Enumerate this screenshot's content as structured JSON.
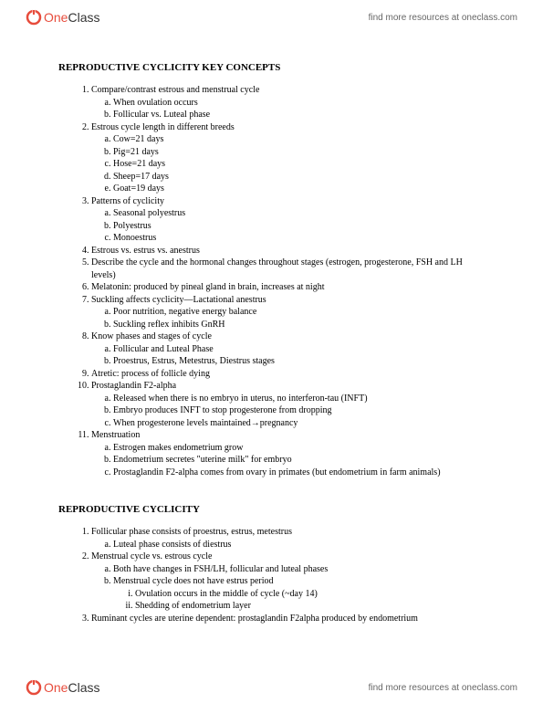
{
  "brand": {
    "one": "One",
    "class": "Class"
  },
  "header_link": "find more resources at oneclass.com",
  "footer_link": "find more resources at oneclass.com",
  "section1": {
    "title": "REPRODUCTIVE CYCLICITY KEY CONCEPTS",
    "items": [
      {
        "t": "Compare/contrast estrous and menstrual cycle",
        "sub": [
          {
            "t": "When ovulation occurs"
          },
          {
            "t": "Follicular vs. Luteal phase"
          }
        ]
      },
      {
        "t": "Estrous cycle length in different breeds",
        "sub": [
          {
            "t": "Cow=21 days"
          },
          {
            "t": "Pig=21 days"
          },
          {
            "t": "Hose=21 days"
          },
          {
            "t": "Sheep=17 days"
          },
          {
            "t": "Goat=19 days"
          }
        ]
      },
      {
        "t": "Patterns of cyclicity",
        "sub": [
          {
            "t": "Seasonal polyestrus"
          },
          {
            "t": "Polyestrus"
          },
          {
            "t": "Monoestrus"
          }
        ]
      },
      {
        "t": "Estrous vs. estrus vs. anestrus"
      },
      {
        "t": "Describe the cycle and the hormonal changes throughout stages (estrogen, progesterone, FSH and LH levels)"
      },
      {
        "t": "Melatonin: produced by pineal gland in brain, increases at night"
      },
      {
        "t": "Suckling affects cyclicity—Lactational anestrus",
        "sub": [
          {
            "t": "Poor nutrition, negative energy balance"
          },
          {
            "t": "Suckling reflex inhibits GnRH"
          }
        ]
      },
      {
        "t": "Know phases and stages of cycle",
        "sub": [
          {
            "t": "Follicular and Luteal Phase"
          },
          {
            "t": "Proestrus, Estrus, Metestrus, Diestrus stages"
          }
        ]
      },
      {
        "t": "Atretic: process of follicle dying"
      },
      {
        "t": "Prostaglandin F2-alpha",
        "sub": [
          {
            "t": "Released when there is no embryo in uterus, no interferon-tau (INFT)"
          },
          {
            "t": "Embryo produces INFT to stop progesterone from dropping"
          },
          {
            "t": "When progesterone levels maintained→pregnancy"
          }
        ]
      },
      {
        "t": "Menstruation",
        "sub": [
          {
            "t": "Estrogen makes endometrium grow"
          },
          {
            "t": "Endometrium secretes \"uterine milk\" for embryo"
          },
          {
            "t": "Prostaglandin F2-alpha comes from ovary in primates (but endometrium in farm animals)"
          }
        ]
      }
    ]
  },
  "section2": {
    "title": "REPRODUCTIVE CYCLICITY",
    "items": [
      {
        "t": "Follicular phase consists of proestrus, estrus, metestrus",
        "sub": [
          {
            "t": "Luteal phase consists of diestrus"
          }
        ]
      },
      {
        "t": "Menstrual cycle vs. estrous cycle",
        "sub": [
          {
            "t": "Both have changes in FSH/LH, follicular and luteal phases"
          },
          {
            "t": "Menstrual cycle does not have estrus period",
            "sub": [
              {
                "t": "Ovulation occurs in the middle of cycle (~day 14)"
              },
              {
                "t": "Shedding of endometrium layer"
              }
            ]
          }
        ]
      },
      {
        "t": "Ruminant cycles are uterine dependent: prostaglandin F2alpha produced by endometrium"
      }
    ]
  },
  "colors": {
    "logo_red": "#e74c3c",
    "text": "#000000",
    "link": "#666666",
    "bg": "#ffffff"
  }
}
